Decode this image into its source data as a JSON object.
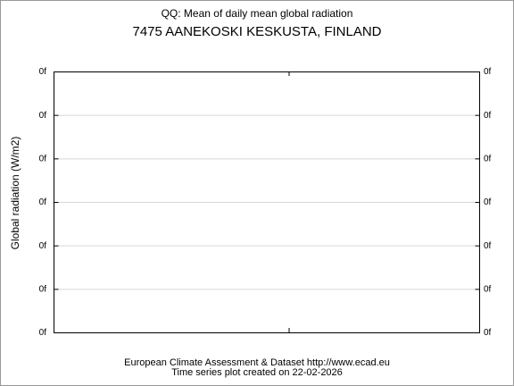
{
  "chart_data": {
    "type": "line",
    "title": "QQ: Mean of daily mean global radiation",
    "subtitle": "7475 AANEKOSKI KESKUSTA, FINLAND",
    "ylabel": "Global radiation (W/m2)",
    "footer": [
      "European Climate Assessment & Dataset  http://www.ecad.eu",
      "Time series plot created on 22-02-2026"
    ],
    "ylim": [
      0,
      6
    ],
    "yticks": [
      {
        "value": 0,
        "label": "0f"
      },
      {
        "value": 1,
        "label": "0f"
      },
      {
        "value": 2,
        "label": "0f"
      },
      {
        "value": 3,
        "label": "0f"
      },
      {
        "value": 4,
        "label": "0f"
      },
      {
        "value": 5,
        "label": "0f"
      },
      {
        "value": 6,
        "label": "0f"
      }
    ],
    "y2lim": [
      0,
      6
    ],
    "y2ticks": [
      {
        "value": 0,
        "label": "0f"
      },
      {
        "value": 1,
        "label": "0f"
      },
      {
        "value": 2,
        "label": "0f"
      },
      {
        "value": 3,
        "label": "0f"
      },
      {
        "value": 4,
        "label": "0f"
      },
      {
        "value": 5,
        "label": "0f"
      },
      {
        "value": 6,
        "label": "0f"
      }
    ],
    "grid": true
  }
}
